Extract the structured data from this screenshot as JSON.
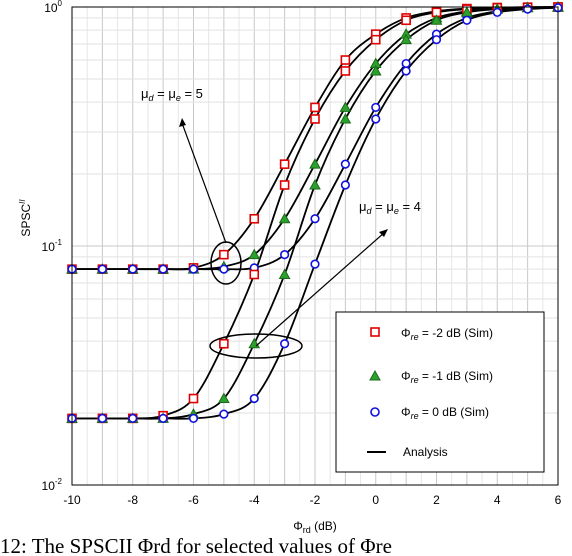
{
  "chart_data": {
    "type": "line",
    "xlabel": "Φrd (dB)",
    "ylabel": "SPSCII",
    "xlim": [
      -10,
      6
    ],
    "ylim": [
      0.01,
      1
    ],
    "yscale": "log",
    "xticks": [
      "-10",
      "-8",
      "-6",
      "-4",
      "-2",
      "0",
      "2",
      "4",
      "6"
    ],
    "yticks": [
      {
        "base": "10",
        "exp": "0"
      },
      {
        "base": "10",
        "exp": "-1"
      },
      {
        "base": "10",
        "exp": "-2"
      }
    ],
    "grid": true,
    "legend_position": "bottom-right",
    "legend": [
      {
        "label": "Φre = -2 dB (Sim)",
        "marker": "square",
        "color": "#e00000"
      },
      {
        "label": "Φre = -1 dB (Sim)",
        "marker": "triangle",
        "color": "#1a8a1a"
      },
      {
        "label": "Φre = 0 dB (Sim)",
        "marker": "circle",
        "color": "#1010e0"
      },
      {
        "label": "Analysis",
        "marker": "line",
        "color": "#000000"
      }
    ],
    "annotations": [
      {
        "text": "μd = μe = 5"
      },
      {
        "text": "μd = μe = 4"
      }
    ],
    "x": [
      -10,
      -9,
      -8,
      -7,
      -6,
      -5,
      -4,
      -3,
      -2,
      -1,
      0,
      1,
      2,
      3,
      4,
      5,
      6
    ],
    "series": [
      {
        "name": "Φre = -2 dB (Sim)",
        "group": "μd = μe = 5",
        "marker": "square",
        "color": "#e00000",
        "values": [
          0.08,
          0.08,
          0.08,
          0.08,
          0.081,
          0.092,
          0.13,
          0.22,
          0.38,
          0.6,
          0.77,
          0.9,
          0.96,
          0.985,
          0.995,
          0.998,
          1.0
        ]
      },
      {
        "name": "Φre = -1 dB (Sim)",
        "group": "μd = μe = 5",
        "marker": "triangle",
        "color": "#1a8a1a",
        "values": [
          0.08,
          0.08,
          0.08,
          0.08,
          0.08,
          0.082,
          0.092,
          0.13,
          0.22,
          0.38,
          0.58,
          0.77,
          0.9,
          0.96,
          0.985,
          0.995,
          1.0
        ]
      },
      {
        "name": "Φre = 0 dB (Sim)",
        "group": "μd = μe = 5",
        "marker": "circle",
        "color": "#1010e0",
        "values": [
          0.08,
          0.08,
          0.08,
          0.08,
          0.08,
          0.08,
          0.081,
          0.092,
          0.13,
          0.22,
          0.38,
          0.58,
          0.77,
          0.9,
          0.96,
          0.985,
          0.995
        ]
      },
      {
        "name": "Φre = -2 dB (Sim)",
        "group": "μd = μe = 4",
        "marker": "square",
        "color": "#e00000",
        "values": [
          0.019,
          0.019,
          0.019,
          0.0195,
          0.023,
          0.039,
          0.076,
          0.18,
          0.34,
          0.54,
          0.73,
          0.88,
          0.95,
          0.98,
          0.993,
          0.998,
          1.0
        ]
      },
      {
        "name": "Φre = -1 dB (Sim)",
        "group": "μd = μe = 4",
        "marker": "triangle",
        "color": "#1a8a1a",
        "values": [
          0.019,
          0.019,
          0.019,
          0.019,
          0.0198,
          0.023,
          0.039,
          0.076,
          0.18,
          0.34,
          0.54,
          0.73,
          0.88,
          0.95,
          0.98,
          0.993,
          0.998
        ]
      },
      {
        "name": "Φre = 0 dB (Sim)",
        "group": "μd = μe = 4",
        "marker": "circle",
        "color": "#1010e0",
        "values": [
          0.019,
          0.019,
          0.019,
          0.019,
          0.019,
          0.0198,
          0.023,
          0.039,
          0.084,
          0.18,
          0.34,
          0.54,
          0.73,
          0.88,
          0.95,
          0.98,
          0.993
        ]
      }
    ]
  },
  "caption": "12: The SPSCII Φrd for selected values of Φre"
}
